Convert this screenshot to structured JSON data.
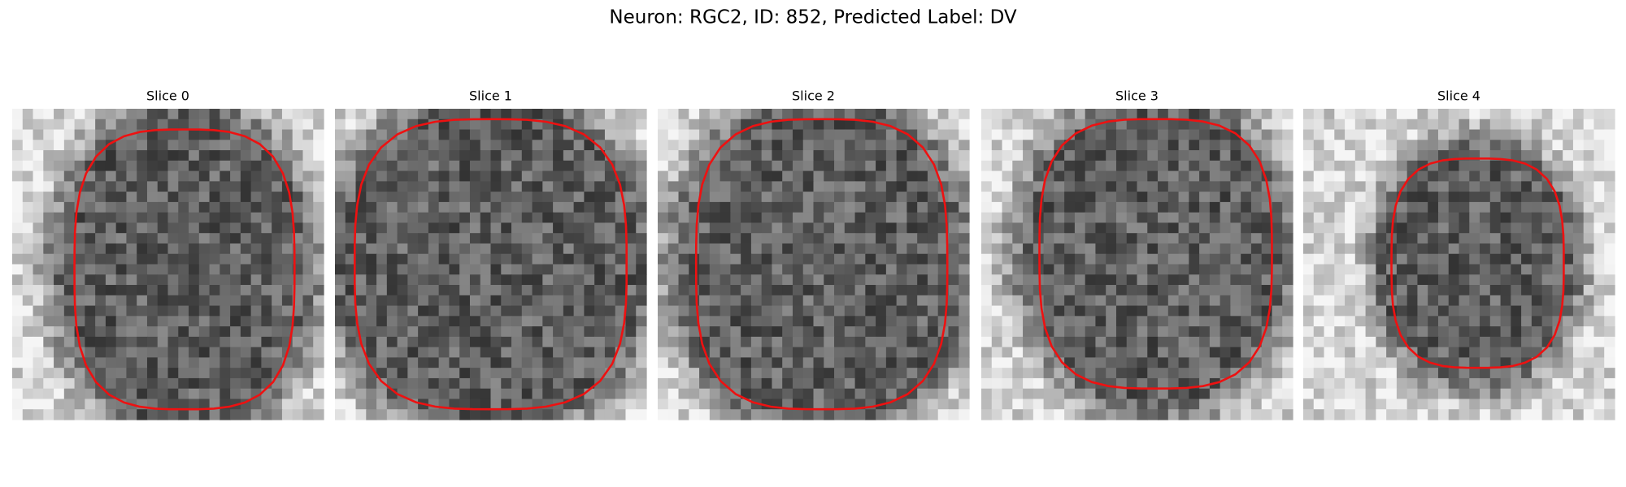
{
  "title": "Neuron: RGC2, ID: 852, Predicted Label: DV",
  "panels": [
    {
      "title": "Slice 0"
    },
    {
      "title": "Slice 1"
    },
    {
      "title": "Slice 2"
    },
    {
      "title": "Slice 3"
    },
    {
      "title": "Slice 4"
    }
  ]
}
